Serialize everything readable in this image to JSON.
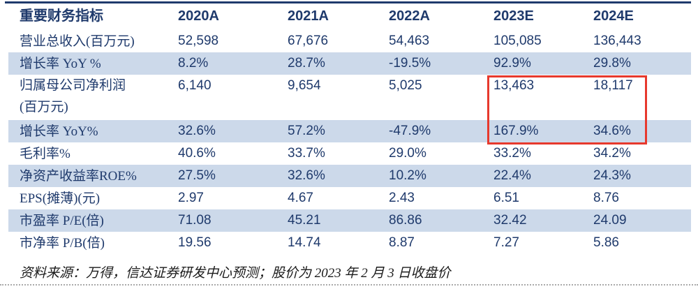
{
  "table": {
    "header": {
      "label": "重要财务指标",
      "years": [
        "2020A",
        "2021A",
        "2022A",
        "2023E",
        "2024E"
      ]
    },
    "rows": [
      {
        "label": "营业总收入(百万元)",
        "values": [
          "52,598",
          "67,676",
          "54,463",
          "105,085",
          "136,443"
        ],
        "shaded": false,
        "tall": false
      },
      {
        "label": "增长率 YoY %",
        "values": [
          "8.2%",
          "28.7%",
          "-19.5%",
          "92.9%",
          "29.8%"
        ],
        "shaded": true,
        "tall": false
      },
      {
        "label": "归属母公司净利润\n(百万元)",
        "values": [
          "6,140",
          "9,654",
          "5,025",
          "13,463",
          "18,117"
        ],
        "shaded": false,
        "tall": true
      },
      {
        "label": "增长率 YoY%",
        "values": [
          "32.6%",
          "57.2%",
          "-47.9%",
          "167.9%",
          "34.6%"
        ],
        "shaded": true,
        "tall": false
      },
      {
        "label": "毛利率%",
        "values": [
          "40.6%",
          "33.7%",
          "29.0%",
          "33.2%",
          "34.2%"
        ],
        "shaded": false,
        "tall": false
      },
      {
        "label": "净资产收益率ROE%",
        "values": [
          "27.5%",
          "32.6%",
          "10.2%",
          "22.4%",
          "24.3%"
        ],
        "shaded": true,
        "tall": false
      },
      {
        "label": "EPS(摊薄)(元)",
        "values": [
          "2.97",
          "4.67",
          "2.43",
          "6.51",
          "8.76"
        ],
        "shaded": false,
        "tall": false
      },
      {
        "label": "市盈率 P/E(倍)",
        "values": [
          "71.08",
          "45.21",
          "86.86",
          "32.42",
          "24.09"
        ],
        "shaded": true,
        "tall": false
      },
      {
        "label": "市净率 P/B(倍)",
        "values": [
          "19.56",
          "14.74",
          "8.87",
          "7.27",
          "5.86"
        ],
        "shaded": false,
        "tall": false
      }
    ],
    "highlight": {
      "description": "red box around 2023E and 2024E net profit and growth rate cells",
      "values_boxed": [
        "13,463",
        "18,117",
        "167.9%",
        "34.6%"
      ]
    },
    "source_note": "资料来源：万得，信达证券研发中心预测；股价为 2023 年 2 月 3 日收盘价"
  },
  "colors": {
    "text_navy": "#1f3a6c",
    "band_blue": "#ccd9ea",
    "top_rule": "#1f3a6c",
    "highlight_red": "#e7392d",
    "note_black": "#1a1a1a",
    "dotted_rule": "#9c9c9c"
  }
}
